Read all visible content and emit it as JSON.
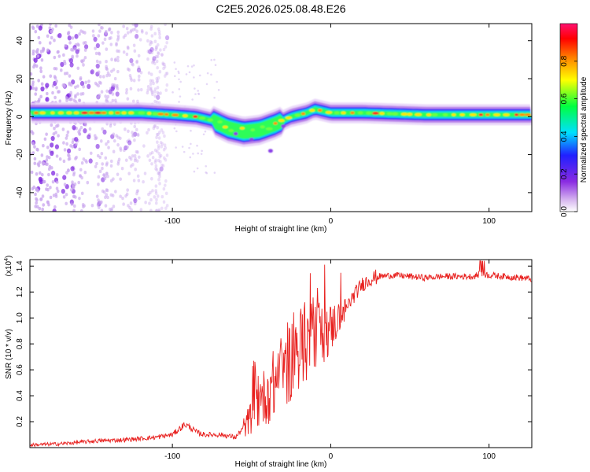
{
  "title": "C2E5.2026.025.08.48.E26",
  "chart_data": [
    {
      "type": "heatmap",
      "xlabel": "Height of straight line (km)",
      "ylabel": "Frequency (Hz)",
      "xlim": [
        -190,
        127
      ],
      "ylim": [
        -50,
        49
      ],
      "xticks": [
        -100,
        0,
        100
      ],
      "xtick_labels": [
        "-100",
        "0",
        "100"
      ],
      "yticks": [
        -40,
        -20,
        0,
        20,
        40
      ],
      "ytick_labels": [
        "-40",
        "-20",
        "0",
        "20",
        "40"
      ],
      "colorbar": {
        "label": "Normalized spectral amplitude",
        "range": [
          0,
          1
        ],
        "ticks": [
          0.0,
          0.2,
          0.4,
          0.6,
          0.8
        ],
        "tick_labels": [
          "0.0",
          "0.2",
          "0.4",
          "0.6",
          "0.8"
        ],
        "colors": [
          "#ffffff",
          "#d8b8f0",
          "#8a2be2",
          "#2020ff",
          "#00e0ff",
          "#00ff40",
          "#ffff00",
          "#ff8000",
          "#ff0000",
          "#ff1070"
        ]
      },
      "ridge": {
        "description": "frequency centerline of strong signal",
        "x": [
          -190,
          -150,
          -120,
          -100,
          -85,
          -75,
          -65,
          -55,
          -45,
          -35,
          -25,
          -15,
          -10,
          0,
          20,
          60,
          100,
          127
        ],
        "y": [
          2,
          2,
          2,
          1,
          0,
          -2,
          -6,
          -8,
          -7,
          -4,
          0,
          2,
          4,
          2,
          2,
          1,
          1,
          1
        ]
      },
      "noise_region_x": [
        -190,
        -105
      ]
    },
    {
      "type": "line",
      "xlabel": "Height of straight line (km)",
      "ylabel": "SNR (10 * v/v)",
      "scale_label": "(x10",
      "scale_exp": "4",
      "scale_close": ")",
      "xlim": [
        -190,
        127
      ],
      "ylim": [
        0,
        1.45
      ],
      "xticks": [
        -100,
        0,
        100
      ],
      "xtick_labels": [
        "-100",
        "0",
        "100"
      ],
      "yticks": [
        0.2,
        0.4,
        0.6,
        0.8,
        1.0,
        1.2,
        1.4
      ],
      "ytick_labels": [
        "0.2",
        "0.4",
        "0.6",
        "0.8",
        "1.0",
        "1.2",
        "1.4"
      ],
      "color": "#e8201e",
      "series": [
        {
          "name": "SNR",
          "x": [
            -190,
            -170,
            -150,
            -130,
            -120,
            -110,
            -100,
            -95,
            -92,
            -88,
            -85,
            -80,
            -70,
            -60,
            -52,
            -48,
            -45,
            -40,
            -35,
            -30,
            -25,
            -20,
            -15,
            -10,
            -5,
            0,
            5,
            10,
            15,
            20,
            25,
            30,
            40,
            50,
            60,
            70,
            80,
            90,
            95,
            100,
            110,
            120,
            127
          ],
          "y": [
            0.02,
            0.03,
            0.05,
            0.06,
            0.07,
            0.08,
            0.1,
            0.15,
            0.18,
            0.15,
            0.12,
            0.1,
            0.1,
            0.08,
            0.2,
            0.3,
            0.35,
            0.42,
            0.5,
            0.6,
            0.68,
            0.78,
            0.82,
            0.9,
            0.88,
            0.92,
            1.0,
            1.08,
            1.18,
            1.26,
            1.3,
            1.32,
            1.33,
            1.32,
            1.31,
            1.32,
            1.32,
            1.32,
            1.34,
            1.33,
            1.32,
            1.31,
            1.3
          ]
        }
      ]
    }
  ]
}
